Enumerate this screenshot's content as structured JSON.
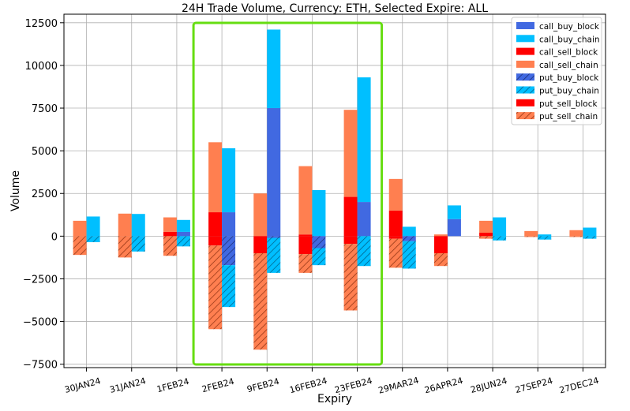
{
  "chart_data": {
    "type": "bar",
    "title": "24H Trade Volume, Currency: ETH, Selected Expire: ALL",
    "xlabel": "Expiry",
    "ylabel": "Volume",
    "ylim": [
      -7700,
      13000
    ],
    "yticks": [
      -7500,
      -5000,
      -2500,
      0,
      2500,
      5000,
      7500,
      10000,
      12500
    ],
    "ytick_labels": [
      "−7500",
      "−5000",
      "−2500",
      "0",
      "2500",
      "5000",
      "7500",
      "10000",
      "12500"
    ],
    "grid": true,
    "legend_position": "top-right",
    "categories": [
      "30JAN24",
      "31JAN24",
      "1FEB24",
      "2FEB24",
      "9FEB24",
      "16FEB24",
      "23FEB24",
      "29MAR24",
      "26APR24",
      "28JUN24",
      "27SEP24",
      "27DEC24"
    ],
    "colors": {
      "call_buy_block": "#4169E1",
      "call_buy_chain": "#00BFFF",
      "call_sell_block": "#FF0000",
      "call_sell_chain": "#FF7F50",
      "put_buy_block": "#4169E1",
      "put_buy_chain": "#00BFFF",
      "put_sell_block": "#FF0000",
      "put_sell_chain": "#FF7F50",
      "highlight": "#66DD11"
    },
    "series": [
      {
        "name": "call_buy_block",
        "position": "right",
        "hatched": false,
        "values": [
          0,
          0,
          250,
          1400,
          7500,
          0,
          2000,
          0,
          1000,
          0,
          0,
          0
        ]
      },
      {
        "name": "call_buy_chain",
        "position": "right",
        "hatched": false,
        "values": [
          1150,
          1300,
          700,
          3750,
          4600,
          2700,
          7300,
          550,
          800,
          1100,
          100,
          500
        ]
      },
      {
        "name": "call_sell_block",
        "position": "left",
        "hatched": false,
        "values": [
          0,
          0,
          250,
          1400,
          0,
          100,
          2300,
          1500,
          0,
          200,
          0,
          0
        ]
      },
      {
        "name": "call_sell_chain",
        "position": "left",
        "hatched": false,
        "values": [
          900,
          1320,
          850,
          4100,
          2500,
          4000,
          5100,
          1850,
          100,
          700,
          300,
          350
        ]
      },
      {
        "name": "put_buy_block",
        "position": "right",
        "hatched": true,
        "values": [
          0,
          0,
          0,
          -1700,
          -100,
          -700,
          0,
          -300,
          0,
          0,
          0,
          0
        ]
      },
      {
        "name": "put_buy_chain",
        "position": "right",
        "hatched": true,
        "values": [
          -350,
          -900,
          -600,
          -2450,
          -2050,
          -1000,
          -1750,
          -1600,
          0,
          -250,
          -200,
          -150
        ]
      },
      {
        "name": "put_sell_block",
        "position": "left",
        "hatched": false,
        "values": [
          0,
          0,
          0,
          -550,
          -1000,
          -1050,
          -450,
          -150,
          -1000,
          0,
          0,
          0
        ]
      },
      {
        "name": "put_sell_chain",
        "position": "left",
        "hatched": true,
        "values": [
          -1100,
          -1250,
          -1150,
          -4900,
          -5650,
          -1100,
          -3900,
          -1700,
          -750,
          -150,
          -50,
          -50
        ]
      }
    ],
    "highlight": {
      "from_category": "2FEB24",
      "to_category": "23FEB24"
    }
  }
}
